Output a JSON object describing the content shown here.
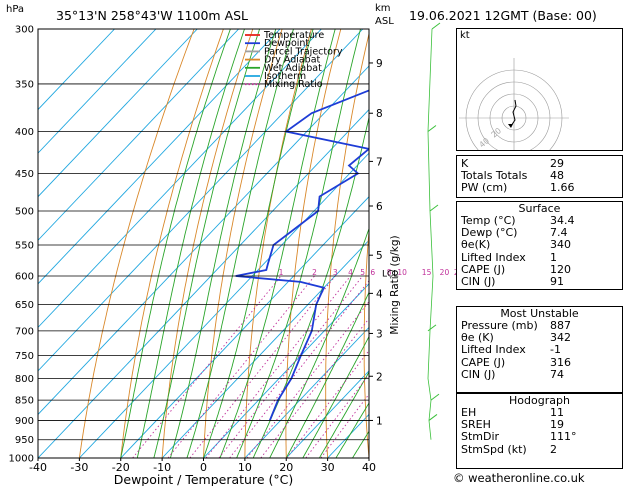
{
  "header": {
    "location": "35°13'N 258°43'W 1100m ASL",
    "datetime": "19.06.2021 12GMT (Base: 00)",
    "hpa_unit": "hPa",
    "km_label": "km",
    "asl_label": "ASL",
    "credit": "© weatheronline.co.uk"
  },
  "legend": [
    {
      "label": "Temperature",
      "color": "#e8231c",
      "dash": "none"
    },
    {
      "label": "Dewpoint",
      "color": "#1e3cd6",
      "dash": "none"
    },
    {
      "label": "Parcel Trajectory",
      "color": "#a0a0a0",
      "dash": "none"
    },
    {
      "label": "Dry Adiabat",
      "color": "#d9882a",
      "dash": "none"
    },
    {
      "label": "Wet Adiabat",
      "color": "#2aa52a",
      "dash": "none"
    },
    {
      "label": "Isotherm",
      "color": "#22a8e0",
      "dash": "none"
    },
    {
      "label": "Mixing Ratio",
      "color": "#c0309a",
      "dash": "dot"
    }
  ],
  "chart_data": {
    "type": "line",
    "xlabel": "Dewpoint / Temperature (°C)",
    "ylabel_left": "hPa",
    "ylabel_right": "Mixing Ratio (g/kg)",
    "xlim": [
      -40,
      40
    ],
    "ylim": [
      1000,
      300
    ],
    "x_ticks": [
      -40,
      -30,
      -20,
      -10,
      0,
      10,
      20,
      30,
      40
    ],
    "pressure_levels": [
      300,
      350,
      400,
      450,
      500,
      550,
      600,
      650,
      700,
      750,
      800,
      850,
      900,
      950,
      1000
    ],
    "km_ticks": [
      {
        "km": "1",
        "p": 900
      },
      {
        "km": "2",
        "p": 795
      },
      {
        "km": "3",
        "p": 705
      },
      {
        "km": "4",
        "p": 630
      },
      {
        "km": "5",
        "p": 566
      },
      {
        "km": "6",
        "p": 493
      },
      {
        "km": "7",
        "p": 435
      },
      {
        "km": "8",
        "p": 380
      },
      {
        "km": "9",
        "p": 330
      }
    ],
    "lcl_label": "LCL",
    "lcl_pressure": 596,
    "mixing_ratio_labels": [
      "1",
      "2",
      "3",
      "4",
      "5",
      "6",
      "8",
      "10",
      "15",
      "20",
      "25"
    ],
    "mixing_ratio_values": [
      1,
      2,
      3,
      4,
      5,
      6,
      8,
      10,
      15,
      20,
      25
    ],
    "series": [
      {
        "name": "Temperature",
        "color": "#e8231c",
        "points": [
          [
            1000,
            40
          ],
          [
            900,
            34.4
          ],
          [
            850,
            29.8
          ],
          [
            800,
            26
          ],
          [
            750,
            21.5
          ],
          [
            700,
            17
          ],
          [
            650,
            13
          ],
          [
            620,
            13
          ],
          [
            600,
            12.5
          ],
          [
            585,
            12.5
          ],
          [
            555,
            8
          ],
          [
            500,
            -0.5
          ],
          [
            450,
            -6.5
          ],
          [
            400,
            -13
          ],
          [
            350,
            -22
          ],
          [
            300,
            -30
          ]
        ]
      },
      {
        "name": "Dewpoint",
        "color": "#1e3cd6",
        "points": [
          [
            900,
            7.4
          ],
          [
            850,
            4.7
          ],
          [
            800,
            3
          ],
          [
            750,
            0
          ],
          [
            700,
            -3
          ],
          [
            650,
            -8
          ],
          [
            620,
            -10
          ],
          [
            610,
            -17
          ],
          [
            600,
            -34
          ],
          [
            590,
            -28
          ],
          [
            580,
            -29
          ],
          [
            550,
            -32
          ],
          [
            500,
            -29
          ],
          [
            480,
            -32
          ],
          [
            450,
            -28
          ],
          [
            445,
            -30
          ],
          [
            440,
            -32
          ],
          [
            420,
            -31
          ],
          [
            400,
            -55
          ],
          [
            380,
            -53
          ],
          [
            340,
            -38
          ],
          [
            310,
            -33
          ],
          [
            300,
            -35
          ]
        ]
      },
      {
        "name": "Parcel Trajectory",
        "color": "#a0a0a0",
        "points": [
          [
            900,
            34.4
          ],
          [
            850,
            28.5
          ],
          [
            800,
            25
          ],
          [
            750,
            20.5
          ],
          [
            700,
            16
          ],
          [
            650,
            12
          ],
          [
            600,
            7
          ],
          [
            596,
            6.5
          ],
          [
            550,
            2
          ],
          [
            500,
            -4
          ],
          [
            450,
            -10
          ],
          [
            400,
            -17
          ],
          [
            350,
            -25
          ],
          [
            300,
            -33
          ]
        ]
      }
    ]
  },
  "hodograph": {
    "label": "kt",
    "ring_labels": [
      "20",
      "40"
    ]
  },
  "wind_barbs_color": "#3cc03c",
  "indices": {
    "k_label": "K",
    "k": "29",
    "tt_label": "Totals Totals",
    "tt": "48",
    "pw_label": "PW (cm)",
    "pw": "1.66"
  },
  "surface": {
    "title": "Surface",
    "rows": [
      {
        "k": "Temp (°C)",
        "v": "34.4"
      },
      {
        "k": "Dewp (°C)",
        "v": "7.4"
      },
      {
        "k": "θe(K)",
        "v": "340"
      },
      {
        "k": "Lifted Index",
        "v": "1"
      },
      {
        "k": "CAPE (J)",
        "v": "120"
      },
      {
        "k": "CIN (J)",
        "v": "91"
      }
    ]
  },
  "most_unstable": {
    "title": "Most Unstable",
    "rows": [
      {
        "k": "Pressure (mb)",
        "v": "887"
      },
      {
        "k": "θe (K)",
        "v": "342"
      },
      {
        "k": "Lifted Index",
        "v": "-1"
      },
      {
        "k": "CAPE (J)",
        "v": "316"
      },
      {
        "k": "CIN (J)",
        "v": "74"
      }
    ]
  },
  "hodograph_table": {
    "title": "Hodograph",
    "rows": [
      {
        "k": "EH",
        "v": "11"
      },
      {
        "k": "SREH",
        "v": "19"
      },
      {
        "k": "StmDir",
        "v": "111°"
      },
      {
        "k": "StmSpd (kt)",
        "v": "2"
      }
    ]
  }
}
